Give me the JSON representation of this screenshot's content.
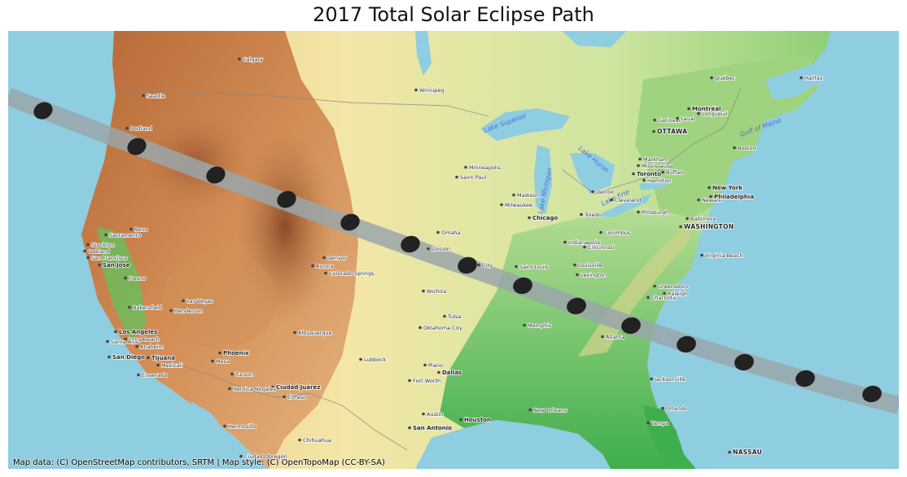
{
  "title": "2017 Total Solar Eclipse Path",
  "attribution": "Map data: (C) OpenStreetMap contributors, SRTM | Map style: (C) OpenTopoMap (CC-BY-SA)",
  "colors": {
    "ocean": "#8fcde0",
    "path_band": "#9aa6aa",
    "umbra": "#222222"
  },
  "cities": [
    {
      "name": "Calgary",
      "style": "normal"
    },
    {
      "name": "Winnipeg",
      "style": "normal"
    },
    {
      "name": "Seattle",
      "style": "normal"
    },
    {
      "name": "Portland",
      "style": "normal"
    },
    {
      "name": "Minneapolis",
      "style": "normal"
    },
    {
      "name": "Saint Paul",
      "style": "normal"
    },
    {
      "name": "Madison",
      "style": "normal"
    },
    {
      "name": "Milwaukee",
      "style": "normal"
    },
    {
      "name": "Chicago",
      "style": "bold"
    },
    {
      "name": "Detroit",
      "style": "normal"
    },
    {
      "name": "Toronto",
      "style": "bold"
    },
    {
      "name": "Markham",
      "style": "normal"
    },
    {
      "name": "Mississauga",
      "style": "normal"
    },
    {
      "name": "Hamilton",
      "style": "normal"
    },
    {
      "name": "Buffalo",
      "style": "normal"
    },
    {
      "name": "Gatineau",
      "style": "normal"
    },
    {
      "name": "Montréal",
      "style": "bold"
    },
    {
      "name": "Laval",
      "style": "normal"
    },
    {
      "name": "Longueuil",
      "style": "normal"
    },
    {
      "name": "OTTAWA",
      "style": "capital"
    },
    {
      "name": "Québec",
      "style": "normal"
    },
    {
      "name": "Halifax",
      "style": "normal"
    },
    {
      "name": "Boston",
      "style": "normal"
    },
    {
      "name": "New York",
      "style": "bold"
    },
    {
      "name": "Newark",
      "style": "normal"
    },
    {
      "name": "Philadelphia",
      "style": "bold"
    },
    {
      "name": "Baltimore",
      "style": "normal"
    },
    {
      "name": "WASHINGTON",
      "style": "capital"
    },
    {
      "name": "Toledo",
      "style": "normal"
    },
    {
      "name": "Cleveland",
      "style": "normal"
    },
    {
      "name": "Pittsburgh",
      "style": "normal"
    },
    {
      "name": "Columbus",
      "style": "normal"
    },
    {
      "name": "Indianapolis",
      "style": "normal"
    },
    {
      "name": "Cincinnati",
      "style": "normal"
    },
    {
      "name": "Louisville",
      "style": "normal"
    },
    {
      "name": "Lexington",
      "style": "normal"
    },
    {
      "name": "Saint Louis",
      "style": "normal"
    },
    {
      "name": "Omaha",
      "style": "normal"
    },
    {
      "name": "Lincoln",
      "style": "normal"
    },
    {
      "name": "City",
      "style": "normal"
    },
    {
      "name": "Wichita",
      "style": "normal"
    },
    {
      "name": "Tulsa",
      "style": "normal"
    },
    {
      "name": "Oklahoma City",
      "style": "normal"
    },
    {
      "name": "Memphis",
      "style": "normal"
    },
    {
      "name": "Atlanta",
      "style": "normal"
    },
    {
      "name": "Charlotte",
      "style": "normal"
    },
    {
      "name": "Greensboro",
      "style": "normal"
    },
    {
      "name": "Raleigh",
      "style": "normal"
    },
    {
      "name": "Virginia Beach",
      "style": "normal"
    },
    {
      "name": "Jacksonville",
      "style": "normal"
    },
    {
      "name": "Orlando",
      "style": "normal"
    },
    {
      "name": "Tampa",
      "style": "normal"
    },
    {
      "name": "NASSAU",
      "style": "capital"
    },
    {
      "name": "New Orleans",
      "style": "normal"
    },
    {
      "name": "Houston",
      "style": "bold"
    },
    {
      "name": "Austin",
      "style": "normal"
    },
    {
      "name": "San Antonio",
      "style": "bold"
    },
    {
      "name": "Dallas",
      "style": "bold"
    },
    {
      "name": "Plano",
      "style": "normal"
    },
    {
      "name": "Fort Worth",
      "style": "normal"
    },
    {
      "name": "Lubbock",
      "style": "normal"
    },
    {
      "name": "Albuquerque",
      "style": "normal"
    },
    {
      "name": "El Paso",
      "style": "normal"
    },
    {
      "name": "Ciudad Juárez",
      "style": "bold"
    },
    {
      "name": "Chihuahua",
      "style": "normal"
    },
    {
      "name": "Hermosillo",
      "style": "normal"
    },
    {
      "name": "Heroica Nogales",
      "style": "normal"
    },
    {
      "name": "Tucson",
      "style": "normal"
    },
    {
      "name": "Phoenix",
      "style": "bold"
    },
    {
      "name": "Mesa",
      "style": "normal"
    },
    {
      "name": "Mexicali",
      "style": "normal"
    },
    {
      "name": "Tijuana",
      "style": "bold"
    },
    {
      "name": "Ensenada",
      "style": "normal"
    },
    {
      "name": "San Diego",
      "style": "bold"
    },
    {
      "name": "Los Angeles",
      "style": "bold"
    },
    {
      "name": "Long Beach",
      "style": "normal"
    },
    {
      "name": "Santa Ana",
      "style": "normal"
    },
    {
      "name": "Anaheim",
      "style": "normal"
    },
    {
      "name": "Bakersfield",
      "style": "normal"
    },
    {
      "name": "Henderson",
      "style": "normal"
    },
    {
      "name": "Las Vegas",
      "style": "normal"
    },
    {
      "name": "Fresno",
      "style": "normal"
    },
    {
      "name": "San Jose",
      "style": "bold"
    },
    {
      "name": "San Francisco",
      "style": "normal"
    },
    {
      "name": "Oakland",
      "style": "normal"
    },
    {
      "name": "Stockton",
      "style": "normal"
    },
    {
      "name": "Sacramento",
      "style": "normal"
    },
    {
      "name": "Reno",
      "style": "normal"
    },
    {
      "name": "Denver",
      "style": "normal"
    },
    {
      "name": "Aurora",
      "style": "normal"
    },
    {
      "name": "Colorado Springs",
      "style": "normal"
    },
    {
      "name": "Ciudad Obregón",
      "style": "normal"
    }
  ],
  "water_labels": [
    "Lake Superior",
    "Lake Michigan",
    "Lake Huron",
    "Lake Erie",
    "Gulf of Maine"
  ]
}
